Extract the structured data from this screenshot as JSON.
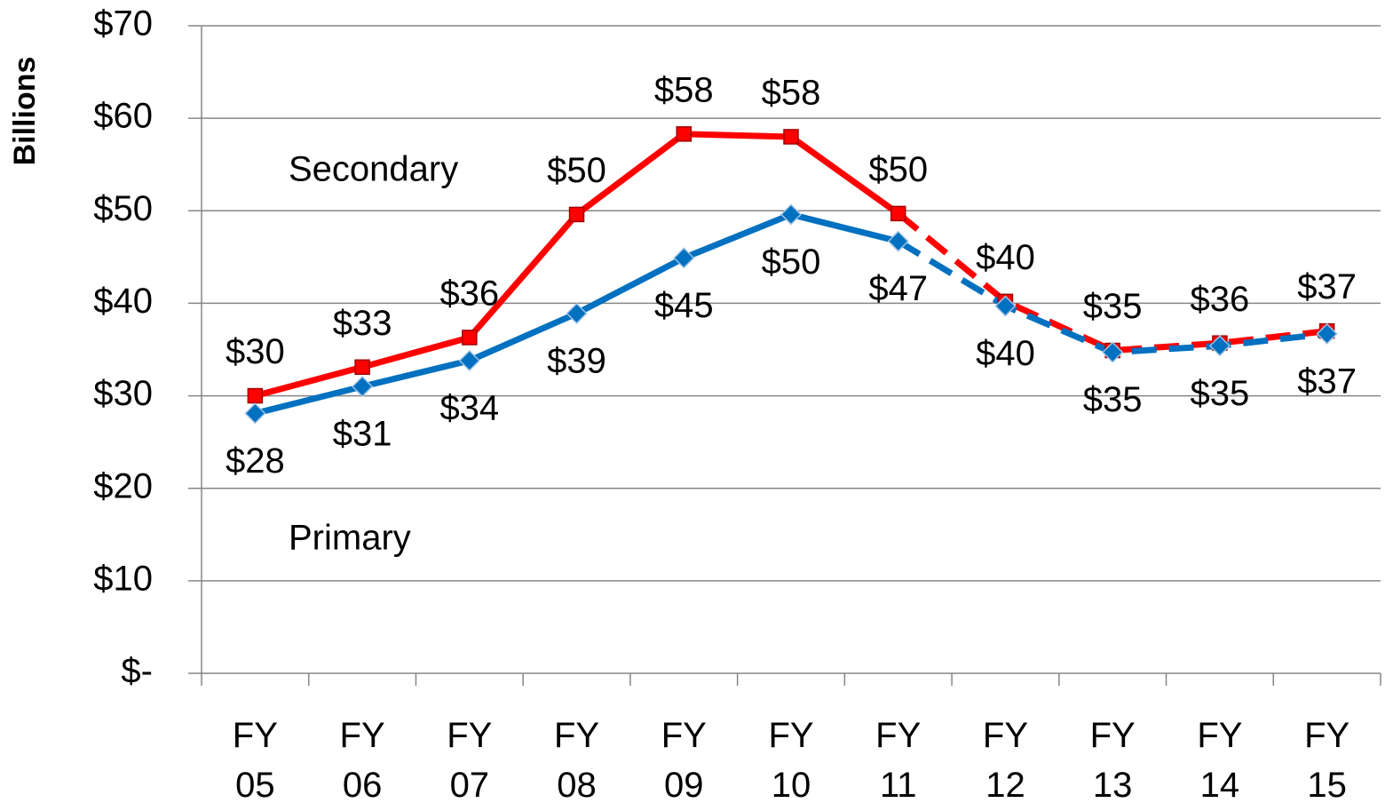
{
  "chart_data": {
    "type": "line",
    "y_label": "Billions",
    "annotations": [
      "Secondary",
      "Primary"
    ],
    "categories": [
      "FY 05",
      "FY 06",
      "FY 07",
      "FY 08",
      "FY 09",
      "FY 10",
      "FY 11",
      "FY 12",
      "FY 13",
      "FY 14",
      "FY 15"
    ],
    "series": [
      {
        "name": "Secondary",
        "color": "#ff0000",
        "marker": "square",
        "dash_start": 6,
        "values": [
          30.0,
          33.1,
          36.3,
          49.6,
          58.3,
          58.0,
          49.7,
          40.2,
          34.9,
          35.7,
          37.0
        ],
        "value_labels": [
          "$30",
          "$33",
          "$36",
          "$50",
          "$58",
          "$58",
          "$50",
          "$40",
          "$35",
          "$36",
          "$37"
        ]
      },
      {
        "name": "Primary",
        "color": "#0070c0",
        "marker": "diamond",
        "dash_start": 6,
        "values": [
          28.1,
          31.0,
          33.8,
          38.9,
          44.9,
          49.6,
          46.7,
          39.7,
          34.7,
          35.4,
          36.7
        ],
        "value_labels": [
          "$28",
          "$31",
          "$34",
          "$39",
          "$45",
          "$50",
          "$47",
          "$40",
          "$35",
          "$35",
          "$37"
        ]
      }
    ],
    "ylim": [
      0,
      70
    ],
    "yticks": [
      {
        "value": 0,
        "label": "$-"
      },
      {
        "value": 10,
        "label": "$10"
      },
      {
        "value": 20,
        "label": "$20"
      },
      {
        "value": 30,
        "label": "$30"
      },
      {
        "value": 40,
        "label": "$40"
      },
      {
        "value": 50,
        "label": "$50"
      },
      {
        "value": 60,
        "label": "$60"
      },
      {
        "value": 70,
        "label": "$70"
      }
    ],
    "grid": true
  }
}
